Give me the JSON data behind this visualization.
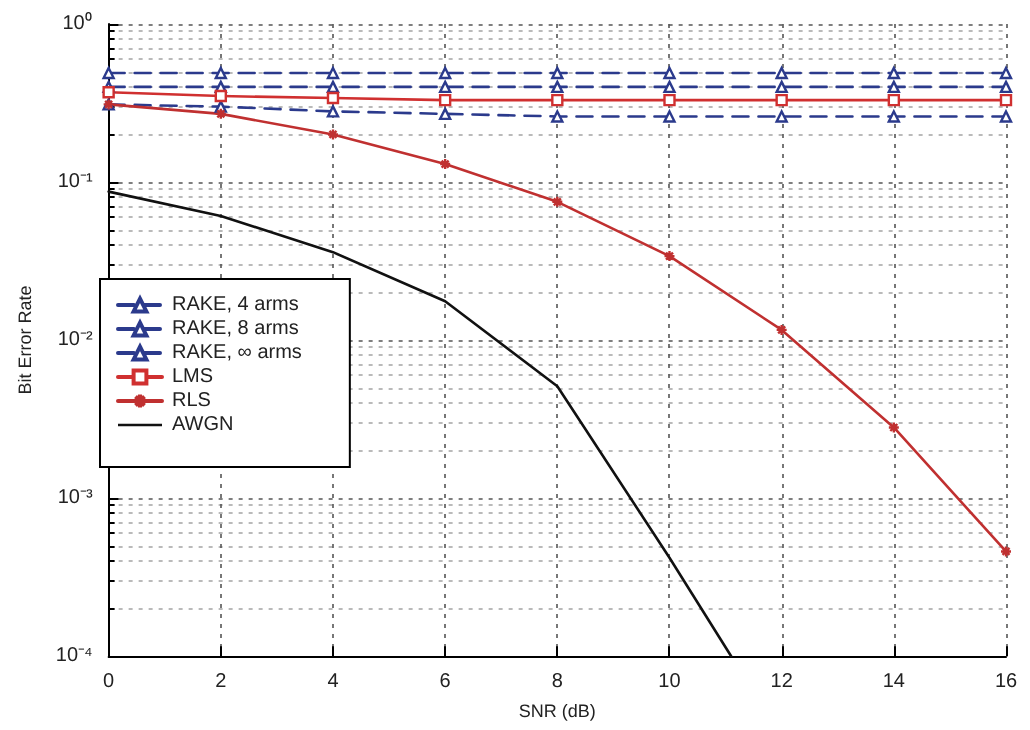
{
  "chart_data": {
    "type": "line",
    "xlabel": "SNR (dB)",
    "ylabel": "Bit Error Rate",
    "log": "y",
    "grid": true,
    "legend": "left",
    "line_style": "solid",
    "x": [
      0,
      2,
      4,
      6,
      8,
      10,
      12,
      14,
      16
    ],
    "xlim": [
      0,
      16
    ],
    "xticks": [
      0,
      2,
      4,
      6,
      8,
      10,
      12,
      14,
      16
    ],
    "ylim": [
      0.0001,
      1
    ],
    "yticks": [
      {
        "value": 0.0001,
        "label": "10⁻⁴"
      },
      {
        "value": 0.001,
        "label": "10⁻³"
      },
      {
        "value": 0.01,
        "label": "10⁻²"
      },
      {
        "value": 0.1,
        "label": "10⁻¹"
      },
      {
        "value": 1,
        "label": "10⁰"
      }
    ],
    "series": [
      {
        "name": "RAKE, 4 arms",
        "color": "#2b3a8c",
        "marker": "triangle",
        "line_style": "dashed",
        "values": [
          0.49,
          0.49,
          0.49,
          0.49,
          0.49,
          0.49,
          0.49,
          0.49,
          0.49
        ]
      },
      {
        "name": "RAKE, 8 arms",
        "color": "#2b3a8c",
        "marker": "triangle",
        "line_style": "dashed",
        "values": [
          0.4,
          0.4,
          0.4,
          0.4,
          0.4,
          0.4,
          0.4,
          0.4,
          0.4
        ]
      },
      {
        "name": "RAKE, ∞ arms",
        "color": "#2b3a8c",
        "marker": "triangle",
        "line_style": "dashed",
        "values": [
          0.31,
          0.3,
          0.28,
          0.27,
          0.26,
          0.26,
          0.26,
          0.26,
          0.26
        ]
      },
      {
        "name": "LMS",
        "color": "#d03030",
        "marker": "square",
        "values": [
          0.37,
          0.35,
          0.34,
          0.33,
          0.33,
          0.33,
          0.33,
          0.33,
          0.33
        ]
      },
      {
        "name": "RLS",
        "color": "#c03030",
        "marker": "cross",
        "values": [
          0.31,
          0.27,
          0.2,
          0.13,
          0.075,
          0.034,
          0.0116,
          0.0028,
          0.00046
        ]
      },
      {
        "name": "AWGN",
        "color": "#111111",
        "marker": "none",
        "x": [
          0,
          2,
          4,
          6,
          8,
          10,
          11.1
        ],
        "values": [
          0.087,
          0.061,
          0.036,
          0.0176,
          0.0051,
          0.00042,
          0.0001
        ]
      }
    ]
  }
}
